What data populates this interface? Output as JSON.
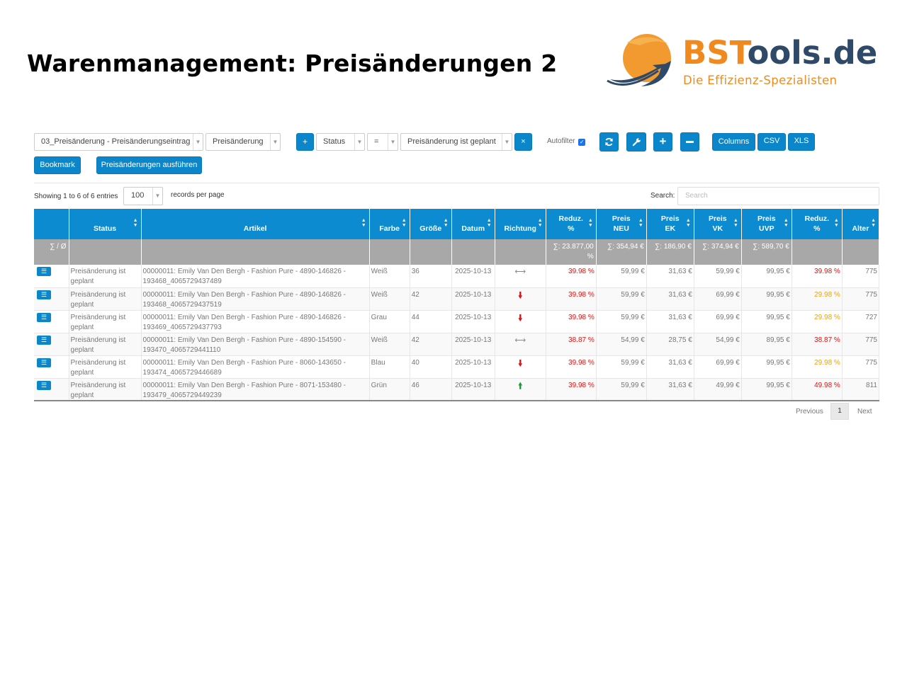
{
  "title": "Warenmanagement: Preisänderungen 2",
  "logo": {
    "name_bs": "BST",
    "name_rest": "ools.de",
    "tagline": "Die Effizienz-Spezialisten",
    "colors": {
      "orange": "#f08a1e",
      "navy": "#2f4a68"
    }
  },
  "toolbar": {
    "view_select": "03_Preisänderung - Preisänderungseintrag",
    "type_select": "Preisänderung",
    "add_filter": "+",
    "filter_field": "Status",
    "filter_op": "=",
    "filter_value": "Preisänderung ist geplant",
    "remove_filter": "×",
    "autofilter_label": "Autofilter",
    "autofilter_checked": true,
    "refresh_icon": "refresh-icon",
    "wrench_icon": "wrench-icon",
    "plus_icon": "plus-icon",
    "minus_icon": "minus-icon",
    "columns": "Columns",
    "csv": "CSV",
    "xls": "XLS",
    "bookmark": "Bookmark",
    "execute": "Preisänderungen ausführen"
  },
  "table_info": {
    "showing": "Showing 1 to 6 of 6 entries",
    "per_page_value": "100",
    "per_page_label": "records per page",
    "search_label": "Search:",
    "search_placeholder": "Search"
  },
  "columns": [
    {
      "l1": "",
      "l2": ""
    },
    {
      "l1": "",
      "l2": "Status"
    },
    {
      "l1": "",
      "l2": "Artikel"
    },
    {
      "l1": "",
      "l2": "Farbe"
    },
    {
      "l1": "",
      "l2": "Größe"
    },
    {
      "l1": "",
      "l2": "Datum"
    },
    {
      "l1": "",
      "l2": "Richtung"
    },
    {
      "l1": "Reduz.",
      "l2": "%"
    },
    {
      "l1": "Preis",
      "l2": "NEU"
    },
    {
      "l1": "Preis",
      "l2": "EK"
    },
    {
      "l1": "Preis",
      "l2": "VK"
    },
    {
      "l1": "Preis",
      "l2": "UVP"
    },
    {
      "l1": "Reduz.",
      "l2": "%"
    },
    {
      "l1": "",
      "l2": "Alter"
    }
  ],
  "summary": {
    "label": "∑ / Ø",
    "reduz": "∑: 23.877,00 %",
    "neu": "∑: 354,94 €",
    "ek": "∑: 186,90 €",
    "vk": "∑: 374,94 €",
    "uvp": "∑: 589,70 €"
  },
  "rows": [
    {
      "status": "Preisänderung ist geplant",
      "artikel": "00000011: Emily Van Den Bergh - Fashion Pure - 4890-146826 - 193468_4065729437489",
      "farbe": "Weiß",
      "groesse": "36",
      "datum": "2025-10-13",
      "richtung": "lr",
      "reduz1": "39.98 %",
      "neu": "59,99 €",
      "ek": "31,63 €",
      "vk": "59,99 €",
      "uvp": "99,95 €",
      "reduz2": "39.98 %",
      "reduz2_color": "red",
      "alter": "775"
    },
    {
      "status": "Preisänderung ist geplant",
      "artikel": "00000011: Emily Van Den Bergh - Fashion Pure - 4890-146826 - 193468_4065729437519",
      "farbe": "Weiß",
      "groesse": "42",
      "datum": "2025-10-13",
      "richtung": "down",
      "reduz1": "39.98 %",
      "neu": "59,99 €",
      "ek": "31,63 €",
      "vk": "69,99 €",
      "uvp": "99,95 €",
      "reduz2": "29.98 %",
      "reduz2_color": "orange",
      "alter": "775"
    },
    {
      "status": "Preisänderung ist geplant",
      "artikel": "00000011: Emily Van Den Bergh - Fashion Pure - 4890-146826 - 193469_4065729437793",
      "farbe": "Grau",
      "groesse": "44",
      "datum": "2025-10-13",
      "richtung": "down",
      "reduz1": "39.98 %",
      "neu": "59,99 €",
      "ek": "31,63 €",
      "vk": "69,99 €",
      "uvp": "99,95 €",
      "reduz2": "29.98 %",
      "reduz2_color": "orange",
      "alter": "727"
    },
    {
      "status": "Preisänderung ist geplant",
      "artikel": "00000011: Emily Van Den Bergh - Fashion Pure - 4890-154590 - 193470_4065729441110",
      "farbe": "Weiß",
      "groesse": "42",
      "datum": "2025-10-13",
      "richtung": "lr",
      "reduz1": "38.87 %",
      "neu": "54,99 €",
      "ek": "28,75 €",
      "vk": "54,99 €",
      "uvp": "89,95 €",
      "reduz2": "38.87 %",
      "reduz2_color": "red",
      "alter": "775"
    },
    {
      "status": "Preisänderung ist geplant",
      "artikel": "00000011: Emily Van Den Bergh - Fashion Pure - 8060-143650 - 193474_4065729446689",
      "farbe": "Blau",
      "groesse": "40",
      "datum": "2025-10-13",
      "richtung": "down",
      "reduz1": "39.98 %",
      "neu": "59,99 €",
      "ek": "31,63 €",
      "vk": "69,99 €",
      "uvp": "99,95 €",
      "reduz2": "29.98 %",
      "reduz2_color": "orange",
      "alter": "775"
    },
    {
      "status": "Preisänderung ist geplant",
      "artikel": "00000011: Emily Van Den Bergh - Fashion Pure - 8071-153480 - 193479_4065729449239",
      "farbe": "Grün",
      "groesse": "46",
      "datum": "2025-10-13",
      "richtung": "up",
      "reduz1": "39.98 %",
      "neu": "59,99 €",
      "ek": "31,63 €",
      "vk": "49,99 €",
      "uvp": "99,95 €",
      "reduz2": "49.98 %",
      "reduz2_color": "red",
      "alter": "811"
    }
  ],
  "pagination": {
    "previous": "Previous",
    "current": "1",
    "next": "Next"
  }
}
